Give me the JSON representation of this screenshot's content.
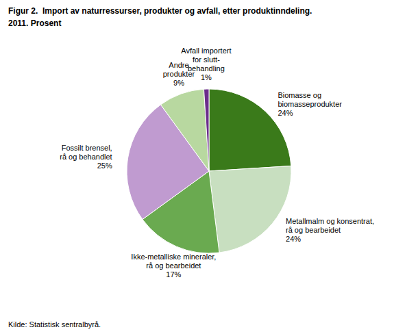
{
  "chart_data": {
    "type": "pie",
    "title": "Figur 2.  Import av naturressurser, produkter og avfall, etter produktinndeling.",
    "subtitle": "2011. Prosent",
    "annotations": [
      "Kilde: Statistisk sentralbyrå."
    ],
    "categories": [
      "Biomasse og\nbiomasseprodukter",
      "Metallmalm og konsentrat,\nrå og bearbeidet",
      "Ikke-metalliske mineraler,\nrå og bearbeidet",
      "Fossilt brensel,\nrå og behandlet",
      "Andre\nprodukter",
      "Avfall importert\nfor slutt-\nbehandling"
    ],
    "values": [
      24,
      24,
      17,
      25,
      9,
      1
    ],
    "value_labels": [
      "24%",
      "24%",
      "17%",
      "25%",
      "9%",
      "1%"
    ],
    "data_labels": true,
    "colors": [
      "#3a7a1a",
      "#c8dfc0",
      "#6aaa50",
      "#c09bd0",
      "#b8d8a0",
      "#6b2d8b"
    ]
  }
}
